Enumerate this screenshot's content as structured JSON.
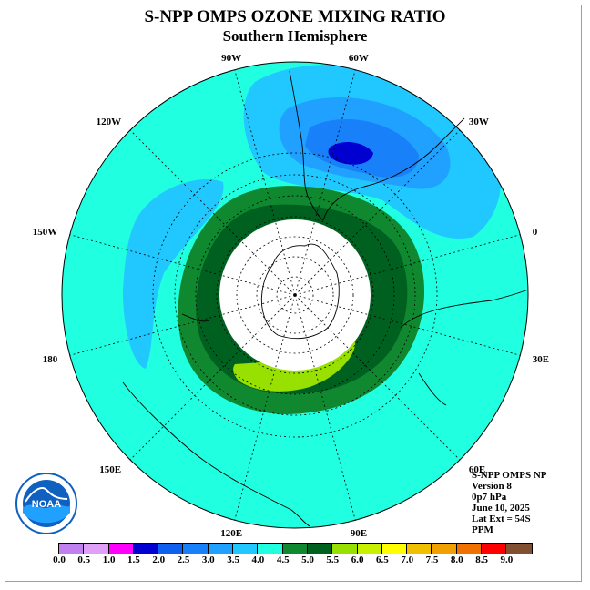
{
  "title": "S-NPP OMPS OZONE MIXING RATIO",
  "subtitle": "Southern Hemisphere",
  "longitude_labels": [
    "90W",
    "60W",
    "30W",
    "0",
    "30E",
    "60E",
    "90E",
    "120E",
    "150E",
    "180",
    "150W",
    "120W"
  ],
  "info": {
    "instrument": "S-NPP OMPS NP",
    "version": "Version 8",
    "level": "0p7 hPa",
    "date": "June 10, 2025",
    "lat_ext": "Lat Ext = 54S",
    "units": "PPM"
  },
  "colorbar": {
    "colors": [
      "#c080f0",
      "#e0a0f8",
      "#ff00ff",
      "#0000d0",
      "#1060f0",
      "#1880f8",
      "#20a0ff",
      "#20c8ff",
      "#20ffe0",
      "#108830",
      "#006020",
      "#98e000",
      "#c8f000",
      "#ffff00",
      "#f0c000",
      "#f0a000",
      "#f07000",
      "#ff0000",
      "#805030"
    ],
    "ticks": [
      "0.0",
      "0.5",
      "1.0",
      "1.5",
      "2.0",
      "2.5",
      "3.0",
      "3.5",
      "4.0",
      "4.5",
      "5.0",
      "5.5",
      "6.0",
      "6.5",
      "7.0",
      "7.5",
      "8.0",
      "8.5",
      "9.0"
    ]
  },
  "logo": {
    "text": "NOAA"
  }
}
